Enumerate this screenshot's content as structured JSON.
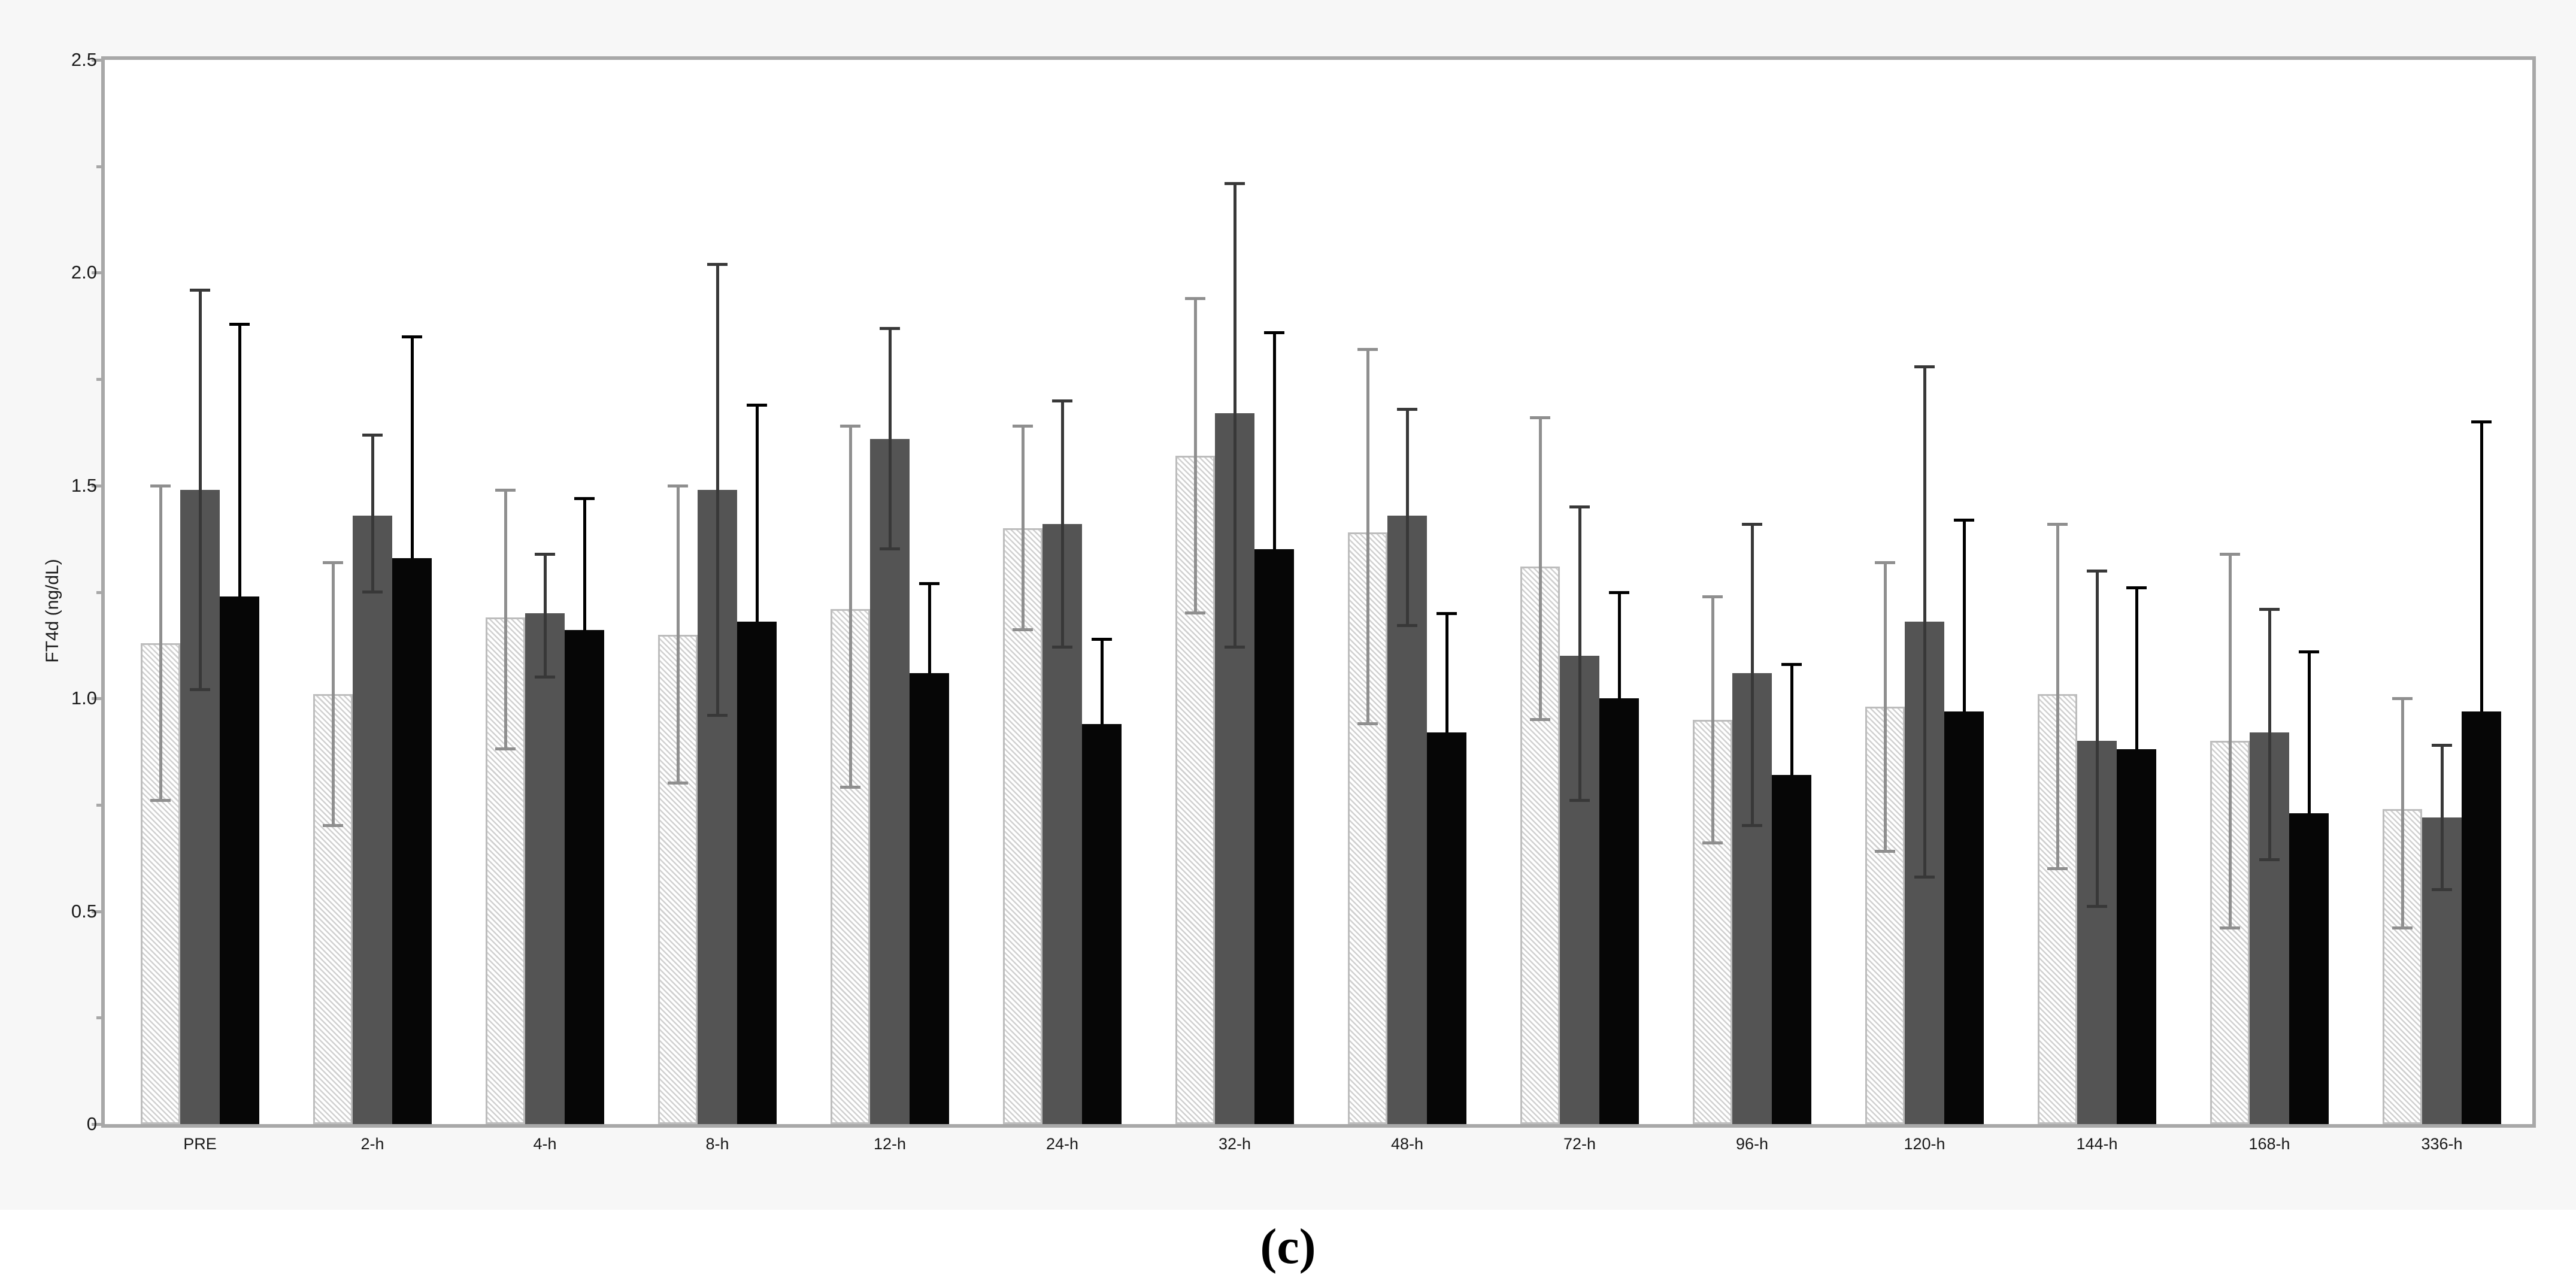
{
  "figure": {
    "caption": "(c)",
    "background": "#f7f7f7",
    "plot_background": "#ffffff",
    "caption_strip_background": "#ffffff",
    "axis_color": "#a8a8a8",
    "text_color": "#1a1a1a"
  },
  "chart_data": {
    "type": "bar",
    "title": "",
    "xlabel": "",
    "ylabel": "FT4d (ng/dL)",
    "ylim": [
      0,
      2.5
    ],
    "grid": "off",
    "legend": "none",
    "error_bars": true,
    "y_major_ticks": [
      {
        "v": 0,
        "label": "0"
      },
      {
        "v": 0.5,
        "label": "0.5"
      },
      {
        "v": 1.0,
        "label": "1.0"
      },
      {
        "v": 1.5,
        "label": "1.5"
      },
      {
        "v": 2.0,
        "label": "2.0"
      },
      {
        "v": 2.5,
        "label": "2.5"
      }
    ],
    "y_minor_ticks": [
      0.25,
      0.75,
      1.25,
      1.75,
      2.25
    ],
    "categories": [
      "PRE",
      "2-h",
      "4-h",
      "8-h",
      "12-h",
      "24-h",
      "32-h",
      "48-h",
      "72-h",
      "96-h",
      "120-h",
      "144-h",
      "168-h",
      "336-h"
    ],
    "series": [
      {
        "name": "hatched",
        "appearance": "diagonal-hatch",
        "fill": "#ffffff",
        "hatch_color": "#d0d0d0",
        "border_color": "#bdbdbd",
        "error_color": "#8f8f8f",
        "values": [
          1.13,
          1.01,
          1.19,
          1.15,
          1.21,
          1.4,
          1.57,
          1.39,
          1.31,
          0.95,
          0.98,
          1.01,
          0.9,
          0.74
        ],
        "error_low": [
          0.76,
          0.7,
          0.88,
          0.8,
          0.79,
          1.16,
          1.2,
          0.94,
          0.95,
          0.66,
          0.64,
          0.6,
          0.46,
          0.46
        ],
        "error_high": [
          1.5,
          1.32,
          1.49,
          1.5,
          1.64,
          1.64,
          1.94,
          1.82,
          1.66,
          1.24,
          1.32,
          1.41,
          1.34,
          1.0
        ]
      },
      {
        "name": "dark-gray",
        "appearance": "solid",
        "fill": "#545454",
        "border_color": null,
        "error_color": "#383838",
        "values": [
          1.49,
          1.43,
          1.2,
          1.49,
          1.61,
          1.41,
          1.67,
          1.43,
          1.1,
          1.06,
          1.18,
          0.9,
          0.92,
          0.72
        ],
        "error_low": [
          1.02,
          1.25,
          1.05,
          0.96,
          1.35,
          1.12,
          1.12,
          1.17,
          0.76,
          0.7,
          0.58,
          0.51,
          0.62,
          0.55
        ],
        "error_high": [
          1.96,
          1.62,
          1.34,
          2.02,
          1.87,
          1.7,
          2.21,
          1.68,
          1.45,
          1.41,
          1.78,
          1.3,
          1.21,
          0.89
        ]
      },
      {
        "name": "black",
        "appearance": "solid",
        "fill": "#060606",
        "border_color": null,
        "error_color": "#000000",
        "values": [
          1.24,
          1.33,
          1.16,
          1.18,
          1.06,
          0.94,
          1.35,
          0.92,
          1.0,
          0.82,
          0.97,
          0.88,
          0.73,
          0.97
        ],
        "error_low": [
          null,
          null,
          null,
          null,
          null,
          null,
          null,
          null,
          null,
          null,
          null,
          null,
          null,
          null
        ],
        "error_high": [
          1.88,
          1.85,
          1.47,
          1.69,
          1.27,
          1.14,
          1.86,
          1.2,
          1.25,
          1.08,
          1.42,
          1.26,
          1.11,
          1.65
        ]
      }
    ]
  }
}
